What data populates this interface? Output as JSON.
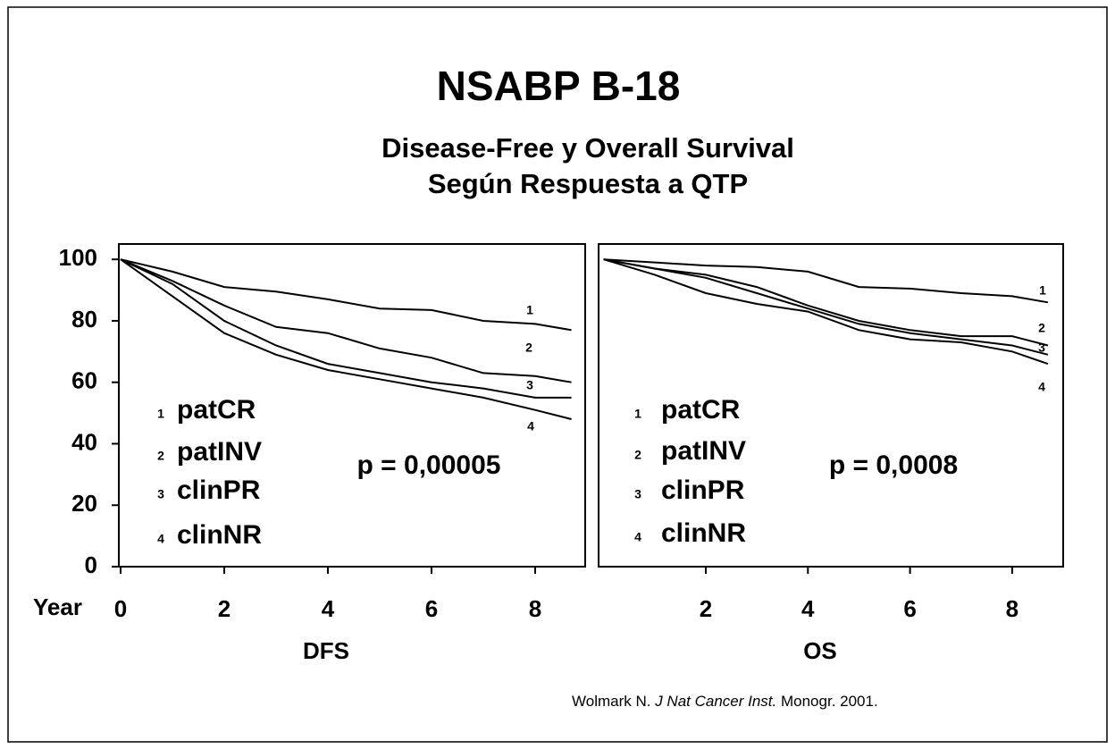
{
  "title": "NSABP B-18",
  "subtitle": [
    "Disease-Free y Overall Survival",
    "Según Respuesta a QTP"
  ],
  "year_label": "Year",
  "citation": [
    "Wolmark N. ",
    "J Nat Cancer Inst.",
    " Monogr. 2001."
  ],
  "chart_data": [
    {
      "type": "line",
      "x_label": "DFS",
      "annotation": "p = 0,00005",
      "x": [
        0,
        1,
        2,
        3,
        4,
        5,
        6,
        7,
        8,
        8.7
      ],
      "xlim": [
        0,
        9
      ],
      "xticks": [
        0,
        2,
        4,
        6,
        8
      ],
      "ylim": [
        0,
        105
      ],
      "yticks": [
        0,
        20,
        40,
        60,
        80,
        100
      ],
      "series": [
        {
          "label": "1",
          "name": "patCR",
          "color": "#000000",
          "values": [
            100,
            96,
            91,
            89.5,
            87,
            84,
            83.5,
            80,
            79,
            77
          ]
        },
        {
          "label": "2",
          "name": "patINV",
          "color": "#000000",
          "values": [
            100,
            93,
            85,
            78,
            76,
            71,
            68,
            63,
            62,
            60
          ]
        },
        {
          "label": "3",
          "name": "clinPR",
          "color": "#000000",
          "values": [
            100,
            92,
            80,
            72,
            66,
            63,
            60,
            58,
            55,
            55
          ]
        },
        {
          "label": "4",
          "name": "clinNR",
          "color": "#000000",
          "values": [
            100,
            88,
            76,
            69,
            64,
            61,
            58,
            55,
            51,
            48
          ]
        }
      ]
    },
    {
      "type": "line",
      "x_label": "OS",
      "annotation": "p = 0,0008",
      "x": [
        0,
        1,
        2,
        3,
        4,
        5,
        6,
        7,
        8,
        8.7
      ],
      "xlim": [
        -0.1,
        9
      ],
      "xticks": [
        2,
        4,
        6,
        8
      ],
      "ylim": [
        0,
        105
      ],
      "series": [
        {
          "label": "1",
          "name": "patCR",
          "color": "#000000",
          "values": [
            100,
            99,
            98,
            97.5,
            96,
            91,
            90.5,
            89,
            88,
            86
          ]
        },
        {
          "label": "2",
          "name": "patINV",
          "color": "#000000",
          "values": [
            100,
            97,
            95,
            91,
            85,
            80,
            77,
            75,
            75,
            72
          ]
        },
        {
          "label": "3",
          "name": "clinPR",
          "color": "#000000",
          "values": [
            100,
            97,
            94,
            89,
            84,
            79,
            76,
            74,
            72,
            69
          ]
        },
        {
          "label": "4",
          "name": "clinNR",
          "color": "#000000",
          "values": [
            100,
            95,
            89,
            85.5,
            83,
            77,
            74,
            73,
            70,
            66
          ]
        }
      ]
    }
  ]
}
